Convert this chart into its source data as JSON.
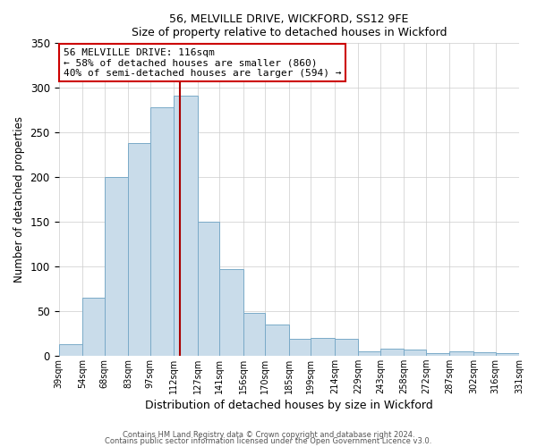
{
  "title": "56, MELVILLE DRIVE, WICKFORD, SS12 9FE",
  "subtitle": "Size of property relative to detached houses in Wickford",
  "xlabel": "Distribution of detached houses by size in Wickford",
  "ylabel": "Number of detached properties",
  "bar_edges": [
    39,
    54,
    68,
    83,
    97,
    112,
    127,
    141,
    156,
    170,
    185,
    199,
    214,
    229,
    243,
    258,
    272,
    287,
    302,
    316,
    331
  ],
  "bar_heights": [
    13,
    65,
    200,
    238,
    278,
    291,
    150,
    97,
    48,
    35,
    19,
    20,
    19,
    5,
    8,
    7,
    3,
    5,
    4,
    3
  ],
  "bar_color": "#c9dcea",
  "bar_edgecolor": "#7aaac8",
  "vline_x": 116,
  "vline_color": "#aa0000",
  "annotation_title": "56 MELVILLE DRIVE: 116sqm",
  "annotation_line1": "← 58% of detached houses are smaller (860)",
  "annotation_line2": "40% of semi-detached houses are larger (594) →",
  "annotation_box_edgecolor": "#cc0000",
  "ylim": [
    0,
    350
  ],
  "yticks": [
    0,
    50,
    100,
    150,
    200,
    250,
    300,
    350
  ],
  "tick_labels": [
    "39sqm",
    "54sqm",
    "68sqm",
    "83sqm",
    "97sqm",
    "112sqm",
    "127sqm",
    "141sqm",
    "156sqm",
    "170sqm",
    "185sqm",
    "199sqm",
    "214sqm",
    "229sqm",
    "243sqm",
    "258sqm",
    "272sqm",
    "287sqm",
    "302sqm",
    "316sqm",
    "331sqm"
  ],
  "footer1": "Contains HM Land Registry data © Crown copyright and database right 2024.",
  "footer2": "Contains public sector information licensed under the Open Government Licence v3.0."
}
